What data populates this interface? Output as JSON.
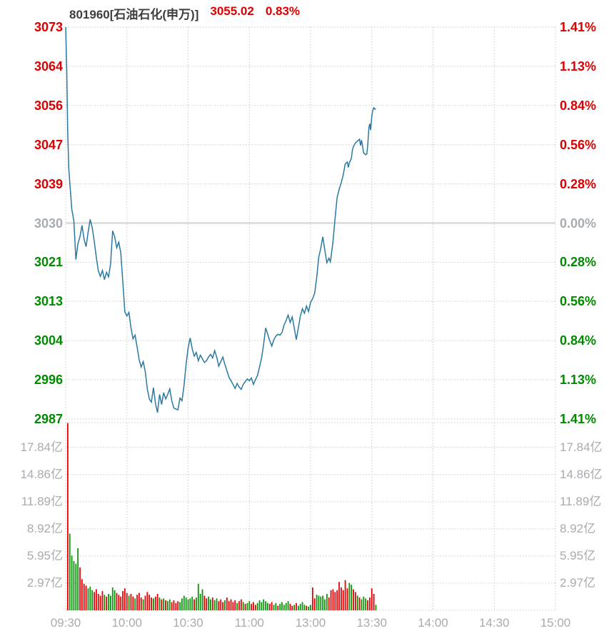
{
  "header": {
    "instrument": "801960[石油石化(申万)]",
    "price": "3055.02",
    "change_pct": "0.83%"
  },
  "colors": {
    "up": "#dd0000",
    "down": "#008a00",
    "neutral": "#a8abb0",
    "header_text": "#3d3d3d",
    "price_line": "#2979a1",
    "bar_up": "#e40000",
    "bar_down": "#0c940c",
    "grid": "#c9c9c9",
    "zero_line": "#dadada"
  },
  "left_axis": {
    "ticks": [
      {
        "label": "3073",
        "tone": "up"
      },
      {
        "label": "3064",
        "tone": "up"
      },
      {
        "label": "3056",
        "tone": "up"
      },
      {
        "label": "3047",
        "tone": "up"
      },
      {
        "label": "3039",
        "tone": "up"
      },
      {
        "label": "3030",
        "tone": "flat"
      },
      {
        "label": "3021",
        "tone": "down"
      },
      {
        "label": "3013",
        "tone": "down"
      },
      {
        "label": "3004",
        "tone": "down"
      },
      {
        "label": "2996",
        "tone": "down"
      },
      {
        "label": "2987",
        "tone": "down"
      }
    ]
  },
  "right_axis": {
    "ticks": [
      {
        "label": "1.41%",
        "tone": "up"
      },
      {
        "label": "1.13%",
        "tone": "up"
      },
      {
        "label": "0.84%",
        "tone": "up"
      },
      {
        "label": "0.56%",
        "tone": "up"
      },
      {
        "label": "0.28%",
        "tone": "up"
      },
      {
        "label": "0.00%",
        "tone": "flat"
      },
      {
        "label": "0.28%",
        "tone": "down"
      },
      {
        "label": "0.56%",
        "tone": "down"
      },
      {
        "label": "0.84%",
        "tone": "down"
      },
      {
        "label": "1.13%",
        "tone": "down"
      },
      {
        "label": "1.41%",
        "tone": "down"
      }
    ]
  },
  "volume_axis_labels": [
    "17.84亿",
    "14.86亿",
    "11.89亿",
    "8.92亿",
    "5.95亿",
    "2.97亿"
  ],
  "x_axis": {
    "labels": [
      "09:30",
      "10:00",
      "10:30",
      "11:00",
      "13:00",
      "13:30",
      "14:00",
      "14:30",
      "15:00"
    ]
  },
  "chart_data": {
    "type": "line",
    "title": "801960[石油石化(申万)] 分时走势",
    "last_price": 3055.02,
    "change_pct": 0.83,
    "prev_close": 3029.9,
    "session_minutes": 240,
    "price_axis": {
      "min": 2987,
      "max": 3073,
      "ticks": [
        3073,
        3064,
        3056,
        3047,
        3039,
        3030,
        3021,
        3013,
        3004,
        2996,
        2987
      ]
    },
    "pct_axis_ticks": [
      1.41,
      1.13,
      0.84,
      0.56,
      0.28,
      0.0,
      -0.28,
      -0.56,
      -0.84,
      -1.13,
      -1.41
    ],
    "volume_axis": {
      "max_yi": 20.55,
      "ticks_yi": [
        17.84,
        14.86,
        11.89,
        8.92,
        5.95,
        2.97
      ]
    },
    "grid": true,
    "price_points": [
      [
        0,
        3073
      ],
      [
        0.5,
        3064
      ],
      [
        1,
        3050
      ],
      [
        1.5,
        3042
      ],
      [
        2,
        3039
      ],
      [
        3,
        3033
      ],
      [
        4,
        3030.5
      ],
      [
        5,
        3022
      ],
      [
        6,
        3025.5
      ],
      [
        7,
        3027
      ],
      [
        8,
        3029.5
      ],
      [
        9,
        3026.5
      ],
      [
        10,
        3024.8
      ],
      [
        11,
        3028
      ],
      [
        12,
        3030.8
      ],
      [
        13,
        3029
      ],
      [
        14,
        3026
      ],
      [
        15,
        3022.5
      ],
      [
        16,
        3019.5
      ],
      [
        17,
        3018.3
      ],
      [
        18,
        3019.6
      ],
      [
        19,
        3017.6
      ],
      [
        20,
        3019.2
      ],
      [
        21,
        3018.2
      ],
      [
        22,
        3021
      ],
      [
        23,
        3028.3
      ],
      [
        24,
        3027
      ],
      [
        25,
        3024.6
      ],
      [
        26,
        3025.8
      ],
      [
        27,
        3023.5
      ],
      [
        28,
        3017
      ],
      [
        29,
        3010.5
      ],
      [
        30,
        3009.6
      ],
      [
        31,
        3010.4
      ],
      [
        32,
        3007
      ],
      [
        33,
        3004.6
      ],
      [
        34,
        3005.4
      ],
      [
        35,
        3002.8
      ],
      [
        36,
        3000
      ],
      [
        37,
        2998.4
      ],
      [
        38,
        2999.6
      ],
      [
        39,
        2997.4
      ],
      [
        40,
        2993.6
      ],
      [
        41,
        2991.4
      ],
      [
        42,
        2990.7
      ],
      [
        43,
        2993.9
      ],
      [
        44,
        2990.4
      ],
      [
        45,
        2988.4
      ],
      [
        46,
        2992.4
      ],
      [
        47,
        2990.2
      ],
      [
        48,
        2992.8
      ],
      [
        49,
        2991.4
      ],
      [
        50,
        2992.4
      ],
      [
        51,
        2993.6
      ],
      [
        52,
        2991
      ],
      [
        53,
        2989.4
      ],
      [
        54,
        2989.2
      ],
      [
        55,
        2989
      ],
      [
        56,
        2991.6
      ],
      [
        57,
        2991
      ],
      [
        58,
        2994.4
      ],
      [
        59,
        2999
      ],
      [
        60,
        3002.6
      ],
      [
        61,
        3004.8
      ],
      [
        62,
        3002.4
      ],
      [
        63,
        3000.8
      ],
      [
        64,
        3001.6
      ],
      [
        65,
        2999.8
      ],
      [
        66,
        3001
      ],
      [
        67,
        3000.2
      ],
      [
        68,
        2999.4
      ],
      [
        69,
        2999.8
      ],
      [
        70,
        3000.6
      ],
      [
        71,
        3001.2
      ],
      [
        72,
        3000.4
      ],
      [
        73,
        3002
      ],
      [
        74,
        3000.6
      ],
      [
        75,
        2998.6
      ],
      [
        76,
        2999.6
      ],
      [
        77,
        3000.6
      ],
      [
        78,
        2999
      ],
      [
        79,
        2997.6
      ],
      [
        80,
        2996.2
      ],
      [
        81,
        2995.4
      ],
      [
        82,
        2994.6
      ],
      [
        83,
        2993.7
      ],
      [
        84,
        2994.8
      ],
      [
        85,
        2994
      ],
      [
        86,
        2993.5
      ],
      [
        87,
        2994.6
      ],
      [
        88,
        2995.2
      ],
      [
        89,
        2995.8
      ],
      [
        90,
        2995.4
      ],
      [
        91,
        2996
      ],
      [
        92,
        2994.6
      ],
      [
        93,
        2995.6
      ],
      [
        94,
        2996.6
      ],
      [
        95,
        2998.4
      ],
      [
        96,
        3000.4
      ],
      [
        97,
        3003.4
      ],
      [
        98,
        3007
      ],
      [
        99,
        3005.6
      ],
      [
        100,
        3004.2
      ],
      [
        101,
        3003
      ],
      [
        102,
        3004.4
      ],
      [
        103,
        3005.2
      ],
      [
        104,
        3005.6
      ],
      [
        105,
        3005.4
      ],
      [
        106,
        3006
      ],
      [
        107,
        3007.6
      ],
      [
        108,
        3008.6
      ],
      [
        109,
        3009.8
      ],
      [
        110,
        3008.2
      ],
      [
        111,
        3009.4
      ],
      [
        112,
        3007
      ],
      [
        113,
        3004.4
      ],
      [
        114,
        3007
      ],
      [
        115,
        3009.6
      ],
      [
        116,
        3011.2
      ],
      [
        117,
        3010.2
      ],
      [
        118,
        3011.8
      ],
      [
        119,
        3010.6
      ],
      [
        120,
        3012.6
      ],
      [
        121,
        3013.4
      ],
      [
        122,
        3014.6
      ],
      [
        123,
        3018
      ],
      [
        124,
        3022.5
      ],
      [
        125,
        3024.5
      ],
      [
        126,
        3027
      ],
      [
        127,
        3024
      ],
      [
        128,
        3021.3
      ],
      [
        129,
        3022.3
      ],
      [
        129.7,
        3021.5
      ],
      [
        130,
        3022.4
      ],
      [
        131,
        3026
      ],
      [
        132,
        3031
      ],
      [
        133,
        3035.6
      ],
      [
        134,
        3037.4
      ],
      [
        135,
        3038.8
      ],
      [
        136,
        3040.6
      ],
      [
        137,
        3043
      ],
      [
        138,
        3043.4
      ],
      [
        138.5,
        3042.2
      ],
      [
        139,
        3043.2
      ],
      [
        140,
        3044.2
      ],
      [
        140.5,
        3046
      ],
      [
        141,
        3046.8
      ],
      [
        142,
        3047.6
      ],
      [
        143,
        3048
      ],
      [
        144,
        3048.4
      ],
      [
        144.5,
        3047
      ],
      [
        145,
        3048.2
      ],
      [
        146,
        3045.4
      ],
      [
        147,
        3045
      ],
      [
        147.6,
        3045.2
      ],
      [
        148,
        3047
      ],
      [
        148.6,
        3051
      ],
      [
        149,
        3051.8
      ],
      [
        149.4,
        3050.4
      ],
      [
        150,
        3053.4
      ],
      [
        150.5,
        3054.8
      ],
      [
        151,
        3055.3
      ],
      [
        151.5,
        3055
      ],
      [
        152,
        3055.1
      ]
    ],
    "volume_bars": [
      [
        1,
        20.5,
        "r"
      ],
      [
        2,
        8.4,
        "g"
      ],
      [
        3,
        6.0,
        "g"
      ],
      [
        4,
        5.4,
        "g"
      ],
      [
        5,
        5.1,
        "g"
      ],
      [
        6,
        6.8,
        "g"
      ],
      [
        7,
        4.7,
        "r"
      ],
      [
        8,
        3.4,
        "r"
      ],
      [
        9,
        2.9,
        "r"
      ],
      [
        10,
        2.7,
        "r"
      ],
      [
        11,
        2.4,
        "g"
      ],
      [
        12,
        2.6,
        "g"
      ],
      [
        13,
        2.2,
        "g"
      ],
      [
        14,
        2.0,
        "r"
      ],
      [
        15,
        2.3,
        "r"
      ],
      [
        16,
        1.8,
        "r"
      ],
      [
        17,
        1.6,
        "r"
      ],
      [
        18,
        2.1,
        "r"
      ],
      [
        19,
        1.7,
        "g"
      ],
      [
        20,
        1.5,
        "r"
      ],
      [
        21,
        1.8,
        "g"
      ],
      [
        22,
        1.6,
        "g"
      ],
      [
        23,
        2.5,
        "g"
      ],
      [
        24,
        2.2,
        "g"
      ],
      [
        25,
        1.9,
        "r"
      ],
      [
        26,
        1.7,
        "r"
      ],
      [
        27,
        1.5,
        "r"
      ],
      [
        28,
        2.1,
        "r"
      ],
      [
        29,
        2.4,
        "r"
      ],
      [
        30,
        1.9,
        "r"
      ],
      [
        31,
        1.6,
        "g"
      ],
      [
        32,
        1.8,
        "r"
      ],
      [
        33,
        1.5,
        "r"
      ],
      [
        34,
        1.3,
        "g"
      ],
      [
        35,
        1.7,
        "r"
      ],
      [
        36,
        1.9,
        "r"
      ],
      [
        37,
        1.4,
        "r"
      ],
      [
        38,
        1.2,
        "g"
      ],
      [
        39,
        1.6,
        "r"
      ],
      [
        40,
        2.0,
        "r"
      ],
      [
        41,
        1.7,
        "r"
      ],
      [
        42,
        1.4,
        "r"
      ],
      [
        43,
        1.3,
        "g"
      ],
      [
        44,
        1.5,
        "r"
      ],
      [
        45,
        1.8,
        "r"
      ],
      [
        46,
        1.4,
        "g"
      ],
      [
        47,
        1.2,
        "r"
      ],
      [
        48,
        1.3,
        "g"
      ],
      [
        49,
        1.1,
        "r"
      ],
      [
        50,
        1.0,
        "g"
      ],
      [
        51,
        1.2,
        "g"
      ],
      [
        52,
        0.9,
        "r"
      ],
      [
        53,
        1.1,
        "r"
      ],
      [
        54,
        0.8,
        "r"
      ],
      [
        55,
        1.0,
        "r"
      ],
      [
        56,
        0.9,
        "g"
      ],
      [
        57,
        1.3,
        "g"
      ],
      [
        58,
        1.6,
        "g"
      ],
      [
        59,
        1.4,
        "g"
      ],
      [
        60,
        1.2,
        "g"
      ],
      [
        61,
        1.3,
        "g"
      ],
      [
        62,
        1.5,
        "g"
      ],
      [
        63,
        1.2,
        "r"
      ],
      [
        64,
        1.4,
        "g"
      ],
      [
        65,
        2.9,
        "g"
      ],
      [
        66,
        1.8,
        "g"
      ],
      [
        67,
        2.3,
        "g"
      ],
      [
        68,
        1.6,
        "r"
      ],
      [
        69,
        1.3,
        "r"
      ],
      [
        70,
        1.5,
        "g"
      ],
      [
        71,
        1.2,
        "g"
      ],
      [
        72,
        1.4,
        "r"
      ],
      [
        73,
        1.1,
        "g"
      ],
      [
        74,
        1.3,
        "g"
      ],
      [
        75,
        1.0,
        "r"
      ],
      [
        76,
        1.2,
        "r"
      ],
      [
        77,
        0.9,
        "r"
      ],
      [
        78,
        1.1,
        "g"
      ],
      [
        79,
        1.4,
        "r"
      ],
      [
        80,
        1.0,
        "r"
      ],
      [
        81,
        1.2,
        "r"
      ],
      [
        82,
        0.9,
        "r"
      ],
      [
        83,
        1.1,
        "r"
      ],
      [
        84,
        0.8,
        "g"
      ],
      [
        85,
        1.0,
        "r"
      ],
      [
        86,
        1.2,
        "r"
      ],
      [
        87,
        0.9,
        "g"
      ],
      [
        88,
        0.7,
        "r"
      ],
      [
        89,
        0.8,
        "g"
      ],
      [
        90,
        1.0,
        "g"
      ],
      [
        91,
        0.7,
        "r"
      ],
      [
        92,
        0.9,
        "r"
      ],
      [
        93,
        0.6,
        "r"
      ],
      [
        94,
        0.8,
        "g"
      ],
      [
        95,
        1.1,
        "g"
      ],
      [
        96,
        0.9,
        "g"
      ],
      [
        97,
        1.2,
        "g"
      ],
      [
        98,
        1.0,
        "g"
      ],
      [
        99,
        0.8,
        "g"
      ],
      [
        100,
        0.7,
        "r"
      ],
      [
        101,
        0.9,
        "r"
      ],
      [
        102,
        0.6,
        "g"
      ],
      [
        103,
        0.8,
        "g"
      ],
      [
        104,
        0.5,
        "r"
      ],
      [
        105,
        0.7,
        "g"
      ],
      [
        106,
        0.9,
        "g"
      ],
      [
        107,
        0.6,
        "g"
      ],
      [
        108,
        0.8,
        "g"
      ],
      [
        109,
        1.0,
        "g"
      ],
      [
        110,
        0.7,
        "r"
      ],
      [
        111,
        0.5,
        "r"
      ],
      [
        112,
        0.6,
        "g"
      ],
      [
        113,
        0.8,
        "r"
      ],
      [
        114,
        0.5,
        "g"
      ],
      [
        115,
        0.7,
        "g"
      ],
      [
        116,
        0.9,
        "g"
      ],
      [
        117,
        0.6,
        "g"
      ],
      [
        118,
        0.5,
        "r"
      ],
      [
        119,
        0.4,
        "g"
      ],
      [
        120,
        0.6,
        "g"
      ],
      [
        121,
        2.5,
        "r"
      ],
      [
        122,
        1.3,
        "r"
      ],
      [
        123,
        1.7,
        "g"
      ],
      [
        124,
        1.6,
        "g"
      ],
      [
        125,
        1.5,
        "g"
      ],
      [
        126,
        1.6,
        "g"
      ],
      [
        127,
        1.2,
        "g"
      ],
      [
        128,
        1.8,
        "g"
      ],
      [
        129,
        1.4,
        "r"
      ],
      [
        130,
        2.2,
        "r"
      ],
      [
        131,
        2.3,
        "r"
      ],
      [
        132,
        2.0,
        "r"
      ],
      [
        133,
        2.2,
        "r"
      ],
      [
        134,
        3.1,
        "r"
      ],
      [
        135,
        2.5,
        "r"
      ],
      [
        136,
        2.2,
        "r"
      ],
      [
        137,
        3.3,
        "r"
      ],
      [
        138,
        2.4,
        "r"
      ],
      [
        139,
        3.0,
        "g"
      ],
      [
        140,
        2.8,
        "g"
      ],
      [
        141,
        2.3,
        "r"
      ],
      [
        142,
        2.0,
        "r"
      ],
      [
        143,
        1.6,
        "g"
      ],
      [
        144,
        1.4,
        "r"
      ],
      [
        145,
        1.2,
        "g"
      ],
      [
        146,
        1.5,
        "g"
      ],
      [
        147,
        1.3,
        "g"
      ],
      [
        148,
        1.1,
        "r"
      ],
      [
        149,
        1.4,
        "r"
      ],
      [
        150,
        2.4,
        "r"
      ],
      [
        151,
        1.8,
        "r"
      ],
      [
        152,
        0.6,
        "g"
      ]
    ]
  }
}
